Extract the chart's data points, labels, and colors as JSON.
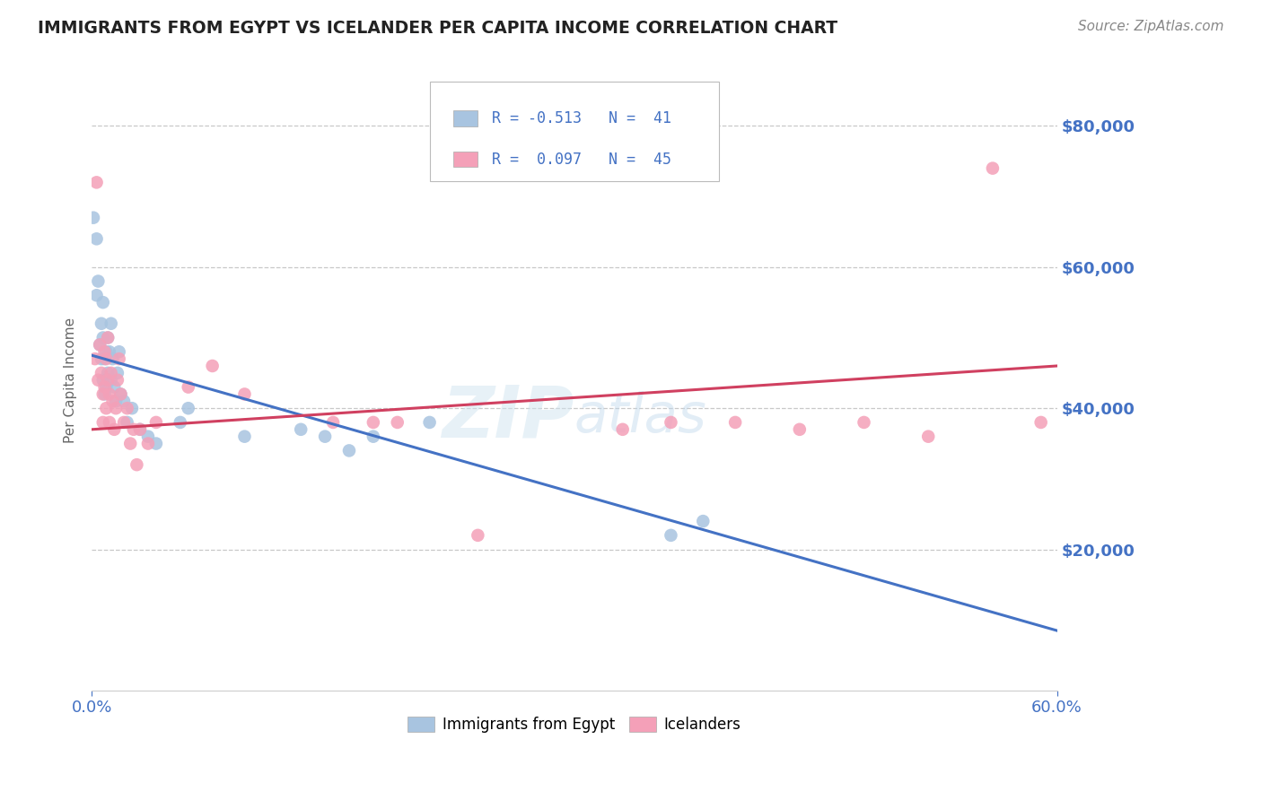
{
  "title": "IMMIGRANTS FROM EGYPT VS ICELANDER PER CAPITA INCOME CORRELATION CHART",
  "source": "Source: ZipAtlas.com",
  "ylabel": "Per Capita Income",
  "xlim": [
    0.0,
    0.6
  ],
  "ylim": [
    0,
    88000
  ],
  "yticks": [
    20000,
    40000,
    60000,
    80000
  ],
  "ytick_labels": [
    "$20,000",
    "$40,000",
    "$60,000",
    "$80,000"
  ],
  "background_color": "#ffffff",
  "grid_color": "#c8c8c8",
  "blue_color": "#a8c4e0",
  "pink_color": "#f4a0b8",
  "blue_line_color": "#4472c4",
  "pink_line_color": "#d04060",
  "axis_color": "#4472c4",
  "legend_label1": "Immigrants from Egypt",
  "legend_label2": "Icelanders",
  "watermark": "ZIPAtlas",
  "egypt_x": [
    0.001,
    0.003,
    0.003,
    0.004,
    0.005,
    0.006,
    0.006,
    0.007,
    0.007,
    0.007,
    0.008,
    0.008,
    0.009,
    0.009,
    0.01,
    0.01,
    0.011,
    0.012,
    0.012,
    0.013,
    0.014,
    0.015,
    0.016,
    0.017,
    0.018,
    0.02,
    0.022,
    0.025,
    0.03,
    0.035,
    0.04,
    0.055,
    0.06,
    0.095,
    0.13,
    0.145,
    0.16,
    0.175,
    0.21,
    0.36,
    0.38
  ],
  "egypt_y": [
    67000,
    64000,
    56000,
    58000,
    49000,
    52000,
    47000,
    55000,
    50000,
    44000,
    47000,
    42000,
    48000,
    43000,
    50000,
    45000,
    48000,
    44000,
    52000,
    47000,
    43000,
    41000,
    45000,
    48000,
    42000,
    41000,
    38000,
    40000,
    37000,
    36000,
    35000,
    38000,
    40000,
    36000,
    37000,
    36000,
    34000,
    36000,
    38000,
    22000,
    24000
  ],
  "iceland_x": [
    0.002,
    0.003,
    0.004,
    0.005,
    0.006,
    0.007,
    0.007,
    0.008,
    0.008,
    0.009,
    0.009,
    0.01,
    0.01,
    0.011,
    0.011,
    0.012,
    0.013,
    0.014,
    0.015,
    0.016,
    0.017,
    0.018,
    0.02,
    0.022,
    0.024,
    0.026,
    0.028,
    0.03,
    0.035,
    0.04,
    0.06,
    0.075,
    0.095,
    0.15,
    0.175,
    0.19,
    0.24,
    0.33,
    0.36,
    0.4,
    0.44,
    0.48,
    0.52,
    0.56,
    0.59
  ],
  "iceland_y": [
    47000,
    72000,
    44000,
    49000,
    45000,
    42000,
    38000,
    48000,
    43000,
    47000,
    40000,
    44000,
    50000,
    42000,
    38000,
    45000,
    41000,
    37000,
    40000,
    44000,
    47000,
    42000,
    38000,
    40000,
    35000,
    37000,
    32000,
    37000,
    35000,
    38000,
    43000,
    46000,
    42000,
    38000,
    38000,
    38000,
    22000,
    37000,
    38000,
    38000,
    37000,
    38000,
    36000,
    74000,
    38000
  ],
  "blue_line_x0": 0.0,
  "blue_line_y0": 47500,
  "blue_line_x1": 0.5,
  "blue_line_y1": 15000,
  "pink_line_x0": 0.0,
  "pink_line_y0": 37000,
  "pink_line_x1": 0.6,
  "pink_line_y1": 46000
}
